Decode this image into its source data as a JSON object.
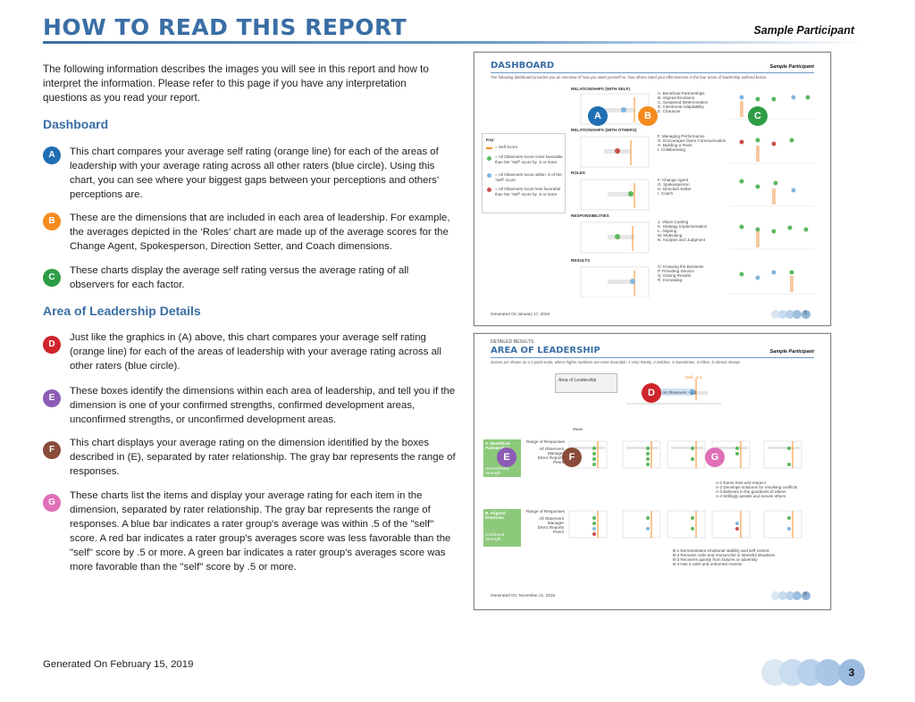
{
  "header": {
    "title": "HOW TO READ THIS REPORT",
    "participant": "Sample Participant"
  },
  "intro": "The following information describes the images you will see in this report and how to interpret the information. Please refer to this page if you have any interpretation questions as you read your report.",
  "dashboard_section": {
    "heading": "Dashboard",
    "items": [
      {
        "badge": "A",
        "color": "#1f6fb2",
        "text": "This chart compares your average self rating (orange line) for each of the areas of leadership with your average rating across all other raters (blue circle). Using this chart, you can see where your biggest gaps between your perceptions and others' perceptions are."
      },
      {
        "badge": "B",
        "color": "#f58b1f",
        "text": "These are the dimensions that are included in each area of leadership. For example, the averages depicted in the ‘Roles’ chart are made up of the average scores for the Change Agent, Spokesperson, Direction Setter, and Coach dimensions."
      },
      {
        "badge": "C",
        "color": "#2e9e46",
        "text": "These charts display the average self rating versus the average rating of all observers for each factor."
      }
    ]
  },
  "details_section": {
    "heading": "Area of Leadership Details",
    "items": [
      {
        "badge": "D",
        "color": "#d0242b",
        "text": "Just like the graphics in (A) above, this chart compares your average self rating (orange line) for each of the areas of leadership with your average rating across all other raters (blue circle)."
      },
      {
        "badge": "E",
        "color": "#8c5cb5",
        "text": "These boxes identify the dimensions within each area of leadership, and tell you if the dimension is one of your confirmed strengths, confirmed development areas, unconfirmed strengths, or unconfirmed development areas."
      },
      {
        "badge": "F",
        "color": "#8a4b3a",
        "text": "This chart displays your average rating on the dimension identified by the boxes described in (E), separated by rater relationship. The gray bar represents the range of responses."
      },
      {
        "badge": "G",
        "color": "#e06fb8",
        "text": "These charts list the items and display your average rating for each item in the dimension, separated by rater relationship. The gray bar represents the range of responses. A blue bar indicates a rater group's average was within .5 of the \"self\" score. A red bar indicates a rater group's averages score was less favorable than the \"self\" score by .5 or more. A green bar indicates a rater group's averages score was more favorable than the \"self\" score by .5 or more."
      }
    ]
  },
  "footer": {
    "generated": "Generated On February 15, 2019",
    "page_number": "3"
  },
  "thumb1": {
    "title": "DASHBOARD",
    "participant": "Sample Participant",
    "subtitle": "The following dashboard provides you an overview of how you rated yourself vs. how others rated your effectiveness in the four areas of leadership outlined below.",
    "sections": [
      "RELATIONSHIPS (WITH SELF)",
      "RELATIONSHIPS (WITH OTHERS)",
      "ROLES",
      "RESPONSIBILITIES",
      "RESULTS"
    ],
    "dims": [
      [
        "A. Beneficial Partnerships",
        "B. Aligned Emotions",
        "C. Sustained Determination",
        "D. Intentional Adaptability",
        "E. Character"
      ],
      [
        "F. Managing Performance",
        "G. Encourages Open Communication",
        "H. Building a Team",
        "I. Collaborating"
      ],
      [
        "F. Change Agent",
        "G. Spokesperson",
        "H. Direction Setter",
        "I. Coach"
      ],
      [
        "J. Vision Casting",
        "K. Strategy Implementation",
        "L. Aligning",
        "M. Motivating",
        "N. Analysis and Judgment"
      ],
      [
        "O. Knowing the Business",
        "P. Providing Service",
        "Q. Driving Results",
        "R. Innovating"
      ]
    ],
    "key_title": "Key:",
    "key_items": [
      "= Self Score",
      "= All Observers score more favorable than the \"self\" score by .5 or more",
      "= All Observers score within .5 of the \"self\" score",
      "= All Observers score less favorable than the \"self\" score by .5 or more"
    ],
    "generated": "Generated On January 17, 2019",
    "page": "5"
  },
  "thumb2": {
    "eyebrow": "DETAILED RESULTS",
    "title": "AREA OF LEADERSHIP",
    "participant": "Sample Participant",
    "subtitle": "Scores are shown on a 5 point scale, where higher numbers are more favorable: 1-Very Rarely, 2-Seldom, 3-Sometimes, 4-Often, 5-Almost Always.",
    "area_label": "Area of Leadership",
    "self_label": "Self - 4.3",
    "observers_label": "All Observers - 4.1",
    "rows": [
      "All Observers",
      "Manager",
      "Direct Reports",
      "Peers"
    ],
    "range_label": "Range of Responses",
    "mean_label": "Mean",
    "dim1": "A. Beneficial Partnerships",
    "dim1_status": "Unconfirmed Strength",
    "dim2": "B. Aligned Emotions",
    "dim2_status": "Confirmed Strength",
    "items1": [
      "A-1 Earns trust and respect",
      "A-2 Develops solutions for resolving conflicts",
      "A-3 Believes in the goodness of others",
      "A-4 Willingly assists and serves others"
    ],
    "items2": [
      "B-1 Demonstrates emotional stability and self-control",
      "B-2 Remains calm and resourceful in stressful situations",
      "B-3 Recovers quickly from failures or adversity",
      "B-4 Has a calm and unhurried manner"
    ],
    "generated": "Generated On: November 21, 2016",
    "page": "8"
  }
}
